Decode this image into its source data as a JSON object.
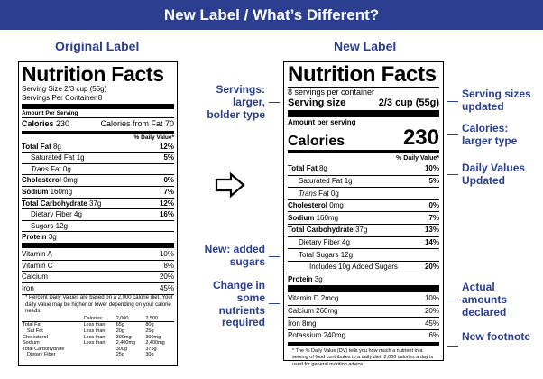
{
  "banner": "New Label / What’s Different?",
  "headings": {
    "original": "Original Label",
    "new": "New Label"
  },
  "original_label": {
    "title": "Nutrition Facts",
    "serving_size": "Serving Size 2/3 cup (55g)",
    "servings_per_container": "Servings Per Container 8",
    "amount_per_serving": "Amount Per Serving",
    "calories_label": "Calories",
    "calories_value": "230",
    "calories_from_fat": "Calories from Fat 70",
    "dv_header": "% Daily Value*",
    "nutrients": [
      {
        "label": "Total Fat",
        "amount": "8g",
        "dv": "12%",
        "bold": true
      },
      {
        "label": "Saturated Fat",
        "amount": "1g",
        "dv": "5%",
        "indent": 1
      },
      {
        "label": "Trans",
        "amount": "Fat 0g",
        "dv": "",
        "indent": 1,
        "italic": true
      },
      {
        "label": "Cholesterol",
        "amount": "0mg",
        "dv": "0%",
        "bold": true
      },
      {
        "label": "Sodium",
        "amount": "160mg",
        "dv": "7%",
        "bold": true
      },
      {
        "label": "Total Carbohydrate",
        "amount": "37g",
        "dv": "12%",
        "bold": true
      },
      {
        "label": "Dietary Fiber",
        "amount": "4g",
        "dv": "16%",
        "indent": 1
      },
      {
        "label": "Sugars",
        "amount": "12g",
        "dv": "",
        "indent": 1
      },
      {
        "label": "Protein",
        "amount": "3g",
        "dv": "",
        "bold": true
      }
    ],
    "vitamins": [
      {
        "label": "Vitamin A",
        "dv": "10%"
      },
      {
        "label": "Vitamin C",
        "dv": "8%"
      },
      {
        "label": "Calcium",
        "dv": "20%"
      },
      {
        "label": "Iron",
        "dv": "45%"
      }
    ],
    "footnote": "* Percent Daily Values are based on a 2,000 calorie diet. Your daily value may be higher or lower depending on your calorie needs.",
    "footnote_table": {
      "header": [
        "",
        "Calories:",
        "2,000",
        "2,500"
      ],
      "rows": [
        [
          "Total Fat",
          "Less than",
          "65g",
          "80g"
        ],
        [
          "   Sat Fat",
          "Less than",
          "20g",
          "25g"
        ],
        [
          "Cholesterol",
          "Less than",
          "300mg",
          "300mg"
        ],
        [
          "Sodium",
          "Less than",
          "2,400mg",
          "2,400mg"
        ],
        [
          "Total Carbohydrate",
          "",
          "300g",
          "375g"
        ],
        [
          "   Dietary Fiber",
          "",
          "25g",
          "30g"
        ]
      ]
    }
  },
  "new_label": {
    "title": "Nutrition Facts",
    "servings_per_container": "8 servings per container",
    "serving_size_label": "Serving size",
    "serving_size_value": "2/3 cup (55g)",
    "amount_per_serving": "Amount per serving",
    "calories_label": "Calories",
    "calories_value": "230",
    "dv_header": "% Daily Value*",
    "nutrients": [
      {
        "label": "Total Fat",
        "amount": "8g",
        "dv": "10%",
        "bold": true
      },
      {
        "label": "Saturated Fat",
        "amount": "1g",
        "dv": "5%",
        "indent": 1
      },
      {
        "label": "Trans",
        "amount": "Fat 0g",
        "dv": "",
        "indent": 1,
        "italic": true
      },
      {
        "label": "Cholesterol",
        "amount": "0mg",
        "dv": "0%",
        "bold": true
      },
      {
        "label": "Sodium",
        "amount": "160mg",
        "dv": "7%",
        "bold": true
      },
      {
        "label": "Total Carbohydrate",
        "amount": "37g",
        "dv": "13%",
        "bold": true
      },
      {
        "label": "Dietary Fiber",
        "amount": "4g",
        "dv": "14%",
        "indent": 1
      },
      {
        "label": "Total Sugars",
        "amount": "12g",
        "dv": "",
        "indent": 1
      },
      {
        "label": "Includes 10g Added Sugars",
        "amount": "",
        "dv": "20%",
        "indent": 2
      },
      {
        "label": "Protein",
        "amount": "3g",
        "dv": "",
        "bold": true
      }
    ],
    "vitamins": [
      {
        "label": "Vitamin D 2mcg",
        "dv": "10%"
      },
      {
        "label": "Calcium 260mg",
        "dv": "20%"
      },
      {
        "label": "Iron 8mg",
        "dv": "45%"
      },
      {
        "label": "Potassium 240mg",
        "dv": "6%"
      }
    ],
    "footnote": "* The % Daily Value (DV) tells you how much a nutrient in a serving of food contributes to a daily diet. 2,000 calories a day is used for general nutrition advice."
  },
  "annotations": {
    "servings": "Servings: larger, bolder type",
    "added_sugars": "New: added sugars",
    "nutrients_required": "Change in some nutrients required",
    "serving_sizes": "Serving sizes updated",
    "calories": "Calories: larger type",
    "daily_values": "Daily Values Updated",
    "amounts": "Actual amounts declared",
    "footnote": "New footnote"
  },
  "colors": {
    "banner": "#2b3e8f",
    "annotation": "#2b3e8f"
  },
  "icons": {
    "arrow": "right-arrow-icon"
  }
}
